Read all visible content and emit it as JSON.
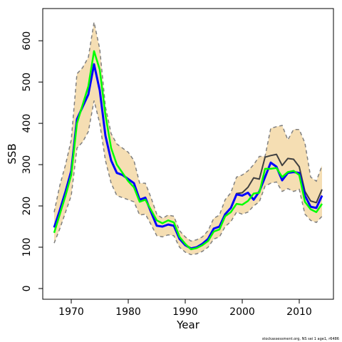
{
  "chart_data": {
    "type": "line",
    "x_label": "Year",
    "y_label": "SSB",
    "footnote": "stockassessment.org, NS sei 1 age1, r6486",
    "xlim": [
      1965,
      2016
    ],
    "ylim": [
      -26,
      678
    ],
    "xticks": [
      1970,
      1980,
      1990,
      2000,
      2010
    ],
    "yticks": [
      0,
      100,
      200,
      300,
      400,
      500,
      600
    ],
    "x": [
      1967,
      1968,
      1969,
      1970,
      1971,
      1972,
      1973,
      1974,
      1975,
      1976,
      1977,
      1978,
      1979,
      1980,
      1981,
      1982,
      1983,
      1984,
      1985,
      1986,
      1987,
      1988,
      1989,
      1990,
      1991,
      1992,
      1993,
      1994,
      1995,
      1996,
      1997,
      1998,
      1999,
      2000,
      2001,
      2002,
      2003,
      2004,
      2005,
      2006,
      2007,
      2008,
      2009,
      2010,
      2011,
      2012,
      2013,
      2014
    ],
    "band": {
      "color": "#f5deb3",
      "edge_color": "#808080",
      "upper": [
        185,
        250,
        300,
        360,
        520,
        535,
        560,
        645,
        580,
        440,
        375,
        350,
        340,
        330,
        310,
        255,
        255,
        220,
        180,
        170,
        178,
        175,
        140,
        125,
        115,
        118,
        125,
        140,
        170,
        178,
        215,
        232,
        270,
        275,
        285,
        300,
        320,
        320,
        388,
        392,
        395,
        360,
        385,
        385,
        352,
        270,
        260,
        298
      ],
      "lower": [
        110,
        145,
        185,
        225,
        340,
        355,
        380,
        455,
        400,
        310,
        255,
        225,
        220,
        215,
        210,
        178,
        180,
        155,
        128,
        125,
        130,
        128,
        100,
        88,
        82,
        84,
        90,
        100,
        120,
        125,
        150,
        162,
        185,
        180,
        185,
        200,
        210,
        248,
        255,
        258,
        235,
        242,
        235,
        240,
        180,
        165,
        160,
        175
      ]
    },
    "series": [
      {
        "color": "#404040",
        "width": 2,
        "values": [
          148,
          190,
          235,
          285,
          410,
          440,
          470,
          543,
          480,
          370,
          310,
          280,
          275,
          265,
          255,
          215,
          220,
          185,
          152,
          150,
          155,
          152,
          120,
          105,
          97,
          100,
          108,
          120,
          145,
          150,
          180,
          195,
          230,
          232,
          245,
          268,
          265,
          318,
          322,
          325,
          298,
          315,
          313,
          295,
          235,
          212,
          208,
          240
        ]
      },
      {
        "color": "#0000ff",
        "width": 3,
        "values": [
          148,
          190,
          235,
          285,
          410,
          440,
          470,
          543,
          480,
          370,
          310,
          280,
          275,
          265,
          255,
          215,
          220,
          185,
          152,
          150,
          155,
          152,
          120,
          105,
          97,
          100,
          108,
          120,
          145,
          150,
          180,
          195,
          228,
          225,
          232,
          215,
          235,
          270,
          305,
          295,
          262,
          280,
          282,
          280,
          225,
          198,
          195,
          225
        ]
      },
      {
        "color": "#00ff00",
        "width": 2.5,
        "values": [
          135,
          180,
          225,
          275,
          400,
          445,
          490,
          575,
          530,
          420,
          340,
          300,
          280,
          260,
          245,
          210,
          215,
          190,
          165,
          158,
          165,
          160,
          125,
          108,
          95,
          98,
          105,
          115,
          138,
          143,
          175,
          185,
          205,
          203,
          212,
          230,
          232,
          290,
          290,
          292,
          270,
          282,
          285,
          275,
          210,
          192,
          185,
          205
        ]
      }
    ]
  }
}
